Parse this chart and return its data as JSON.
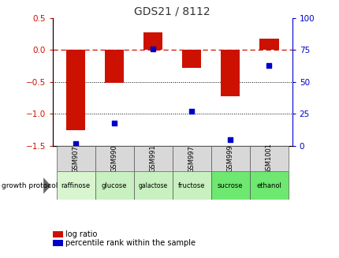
{
  "title": "GDS21 / 8112",
  "samples": [
    "GSM907",
    "GSM990",
    "GSM991",
    "GSM997",
    "GSM999",
    "GSM1001"
  ],
  "protocols": [
    "raffinose",
    "glucose",
    "galactose",
    "fructose",
    "sucrose",
    "ethanol"
  ],
  "log_ratios": [
    -1.25,
    -0.52,
    0.28,
    -0.28,
    -0.72,
    0.18
  ],
  "percentile_ranks": [
    2,
    18,
    76,
    27,
    5,
    63
  ],
  "bar_color": "#cc1100",
  "dot_color": "#0000cc",
  "ylim_left": [
    -1.5,
    0.5
  ],
  "ylim_right": [
    0,
    100
  ],
  "protocol_colors": [
    "#d8f5d0",
    "#c8f0c0",
    "#c8f0c0",
    "#c8f0c0",
    "#6ee870",
    "#6ee870"
  ],
  "title_color": "#333333",
  "left_tick_color": "#cc1100",
  "right_tick_color": "#0000cc",
  "hline_y": 0,
  "dotted_lines": [
    -0.5,
    -1.0
  ],
  "bar_width": 0.5,
  "legend_log_ratio": "log ratio",
  "legend_percentile": "percentile rank within the sample"
}
